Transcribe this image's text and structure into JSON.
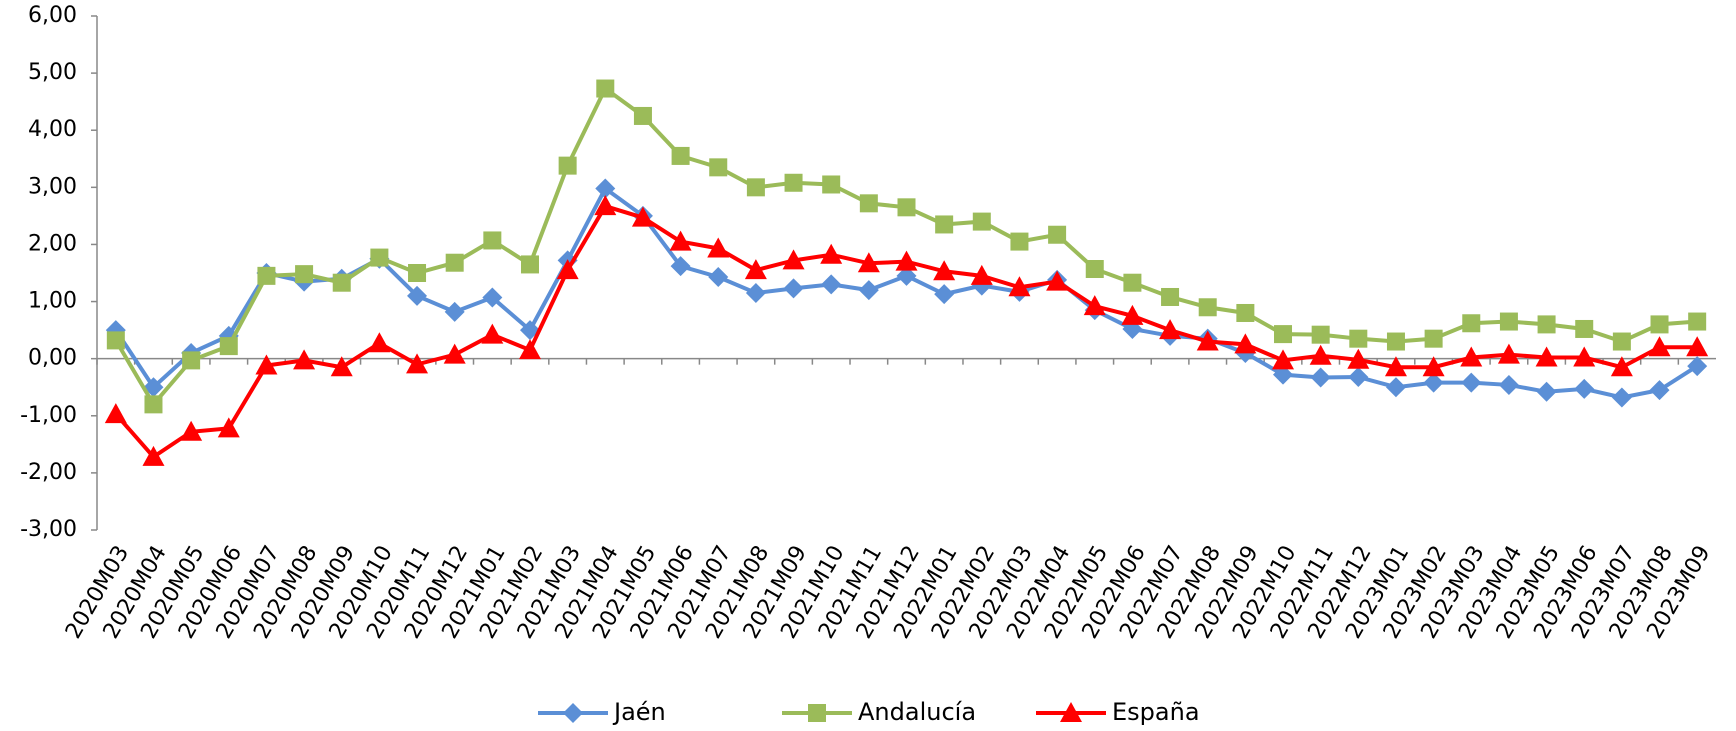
{
  "chart_data": {
    "type": "line",
    "categories": [
      "2020M03",
      "2020M04",
      "2020M05",
      "2020M06",
      "2020M07",
      "2020M08",
      "2020M09",
      "2020M10",
      "2020M11",
      "2020M12",
      "2021M01",
      "2021M02",
      "2021M03",
      "2021M04",
      "2021M05",
      "2021M06",
      "2021M07",
      "2021M08",
      "2021M09",
      "2021M10",
      "2021M11",
      "2021M12",
      "2022M01",
      "2022M02",
      "2022M03",
      "2022M04",
      "2022M05",
      "2022M06",
      "2022M07",
      "2022M08",
      "2022M09",
      "2022M10",
      "2022M11",
      "2022M12",
      "2023M01",
      "2023M02",
      "2023M03",
      "2023M04",
      "2023M05",
      "2023M06",
      "2023M07",
      "2023M08",
      "2023M09"
    ],
    "series": [
      {
        "name": "Jaén",
        "color": "#5b8fd6",
        "marker": "diamond",
        "values": [
          0.5,
          -0.5,
          0.1,
          0.4,
          1.5,
          1.35,
          1.4,
          1.75,
          1.1,
          0.82,
          1.07,
          0.5,
          1.72,
          2.98,
          2.5,
          1.62,
          1.43,
          1.15,
          1.23,
          1.3,
          1.2,
          1.45,
          1.13,
          1.28,
          1.17,
          1.38,
          0.85,
          0.52,
          0.4,
          0.35,
          0.1,
          -0.28,
          -0.33,
          -0.32,
          -0.5,
          -0.42,
          -0.42,
          -0.46,
          -0.58,
          -0.53,
          -0.68,
          -0.55,
          -0.13
        ]
      },
      {
        "name": "Andalucía",
        "color": "#9bbb59",
        "marker": "square",
        "values": [
          0.32,
          -0.8,
          -0.03,
          0.22,
          1.45,
          1.48,
          1.33,
          1.77,
          1.5,
          1.68,
          2.07,
          1.65,
          3.38,
          4.73,
          4.25,
          3.55,
          3.35,
          3.0,
          3.08,
          3.05,
          2.72,
          2.65,
          2.35,
          2.4,
          2.05,
          2.17,
          1.57,
          1.33,
          1.08,
          0.9,
          0.8,
          0.43,
          0.42,
          0.35,
          0.3,
          0.35,
          0.62,
          0.65,
          0.6,
          0.52,
          0.3,
          0.6,
          0.65
        ]
      },
      {
        "name": "España",
        "color": "#ff0000",
        "marker": "triangle",
        "values": [
          -0.97,
          -1.72,
          -1.28,
          -1.22,
          -0.12,
          -0.03,
          -0.15,
          0.27,
          -0.1,
          0.07,
          0.42,
          0.15,
          1.55,
          2.67,
          2.47,
          2.05,
          1.93,
          1.55,
          1.72,
          1.82,
          1.67,
          1.7,
          1.53,
          1.45,
          1.25,
          1.35,
          0.92,
          0.75,
          0.5,
          0.3,
          0.25,
          -0.03,
          0.05,
          -0.02,
          -0.15,
          -0.15,
          0.02,
          0.07,
          0.02,
          0.02,
          -0.15,
          0.2,
          0.2
        ]
      }
    ],
    "ylim": [
      -3,
      6
    ],
    "yticks": [
      {
        "value": -3,
        "label": "-3,00"
      },
      {
        "value": -2,
        "label": "-2,00"
      },
      {
        "value": -1,
        "label": "-1,00"
      },
      {
        "value": 0,
        "label": "0,00"
      },
      {
        "value": 1,
        "label": "1,00"
      },
      {
        "value": 2,
        "label": "2,00"
      },
      {
        "value": 3,
        "label": "3,00"
      },
      {
        "value": 4,
        "label": "4,00"
      },
      {
        "value": 5,
        "label": "5,00"
      },
      {
        "value": 6,
        "label": "6,00"
      }
    ],
    "grid": false,
    "legend": "bottom"
  }
}
